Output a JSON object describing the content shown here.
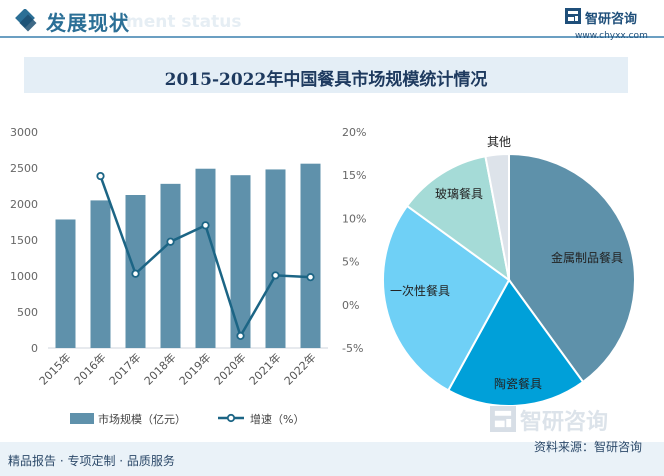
{
  "header": {
    "title": "发展现状",
    "watermark": "ment status"
  },
  "logo": {
    "name": "智研咨询",
    "url": "www.chyxx.com"
  },
  "watermark_text": "智研咨询",
  "colors": {
    "bar": "#5f91ab",
    "line": "#1c6585",
    "accent": "#2b6f96"
  },
  "chart_data": [
    {
      "type": "bar",
      "title": "2015-2022年中国餐具市场规模统计情况",
      "categories": [
        "2015年",
        "2016年",
        "2017年",
        "2018年",
        "2019年",
        "2020年",
        "2021年",
        "2022年"
      ],
      "series": [
        {
          "name": "市场规模（亿元）",
          "type": "bar",
          "axis": "left",
          "values": [
            1785,
            2050,
            2125,
            2280,
            2490,
            2400,
            2480,
            2560
          ]
        },
        {
          "name": "增速（%）",
          "type": "line",
          "axis": "right",
          "values": [
            null,
            14.9,
            3.6,
            7.3,
            9.2,
            -3.6,
            3.4,
            3.2
          ]
        }
      ],
      "yticks_left": [
        "0",
        "500",
        "1000",
        "1500",
        "2000",
        "2500",
        "3000"
      ],
      "ylim_left": [
        0,
        3000
      ],
      "yticks_right": [
        "-5%",
        "0%",
        "5%",
        "10%",
        "15%",
        "20%"
      ],
      "ylim_right": [
        -5,
        20
      ],
      "grid": false,
      "legend_position": "bottom"
    },
    {
      "type": "pie",
      "labels": [
        "金属制品餐具",
        "陶瓷餐具",
        "一次性餐具",
        "玻璃餐具",
        "其他"
      ],
      "values": [
        40,
        18,
        27,
        12,
        3
      ],
      "colors": [
        "#5e91aa",
        "#00a0d9",
        "#6fd0f6",
        "#a5dbd7",
        "#dde3ea"
      ]
    }
  ],
  "footer": {
    "slogan": "精品报告 · 专项定制 · 品质服务",
    "source": "资料来源：智研咨询"
  }
}
